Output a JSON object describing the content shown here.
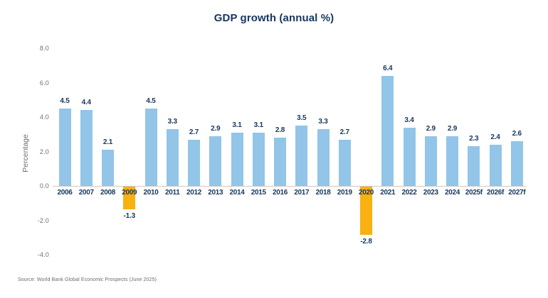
{
  "title": "GDP growth (annual %)",
  "source": "Source: World Bank Global Economic Prospects (June 2025)",
  "chart_data": {
    "type": "bar",
    "title": "GDP growth (annual %)",
    "xlabel": "",
    "ylabel": "Percentage",
    "categories": [
      "2006",
      "2007",
      "2008",
      "2009",
      "2010",
      "2011",
      "2012",
      "2013",
      "2014",
      "2015",
      "2016",
      "2017",
      "2018",
      "2019",
      "2020",
      "2021",
      "2022",
      "2023",
      "2024",
      "2025f",
      "2026f",
      "2027f"
    ],
    "values": [
      4.5,
      4.4,
      2.1,
      -1.3,
      4.5,
      3.3,
      2.7,
      2.9,
      3.1,
      3.1,
      2.8,
      3.5,
      3.3,
      2.7,
      -2.8,
      6.4,
      3.4,
      2.9,
      2.9,
      2.3,
      2.4,
      2.6
    ],
    "ylim": [
      -4.0,
      8.0
    ],
    "ytick_labels": [
      "8.0",
      "6.0",
      "4.0",
      "2.0",
      "0.0",
      "-2.0",
      "-4.0"
    ],
    "grid": false,
    "legend": "none",
    "data_labels": true,
    "positive_bar_color": "#92C5E8",
    "negative_bar_color": "#F9B011"
  },
  "colors": {
    "background": "#FFFFFF",
    "navy_text": "#17365D",
    "tick_text": "#6E6E6E",
    "axis_line": "#C9C9C9",
    "source_text": "#6B6B6B"
  }
}
